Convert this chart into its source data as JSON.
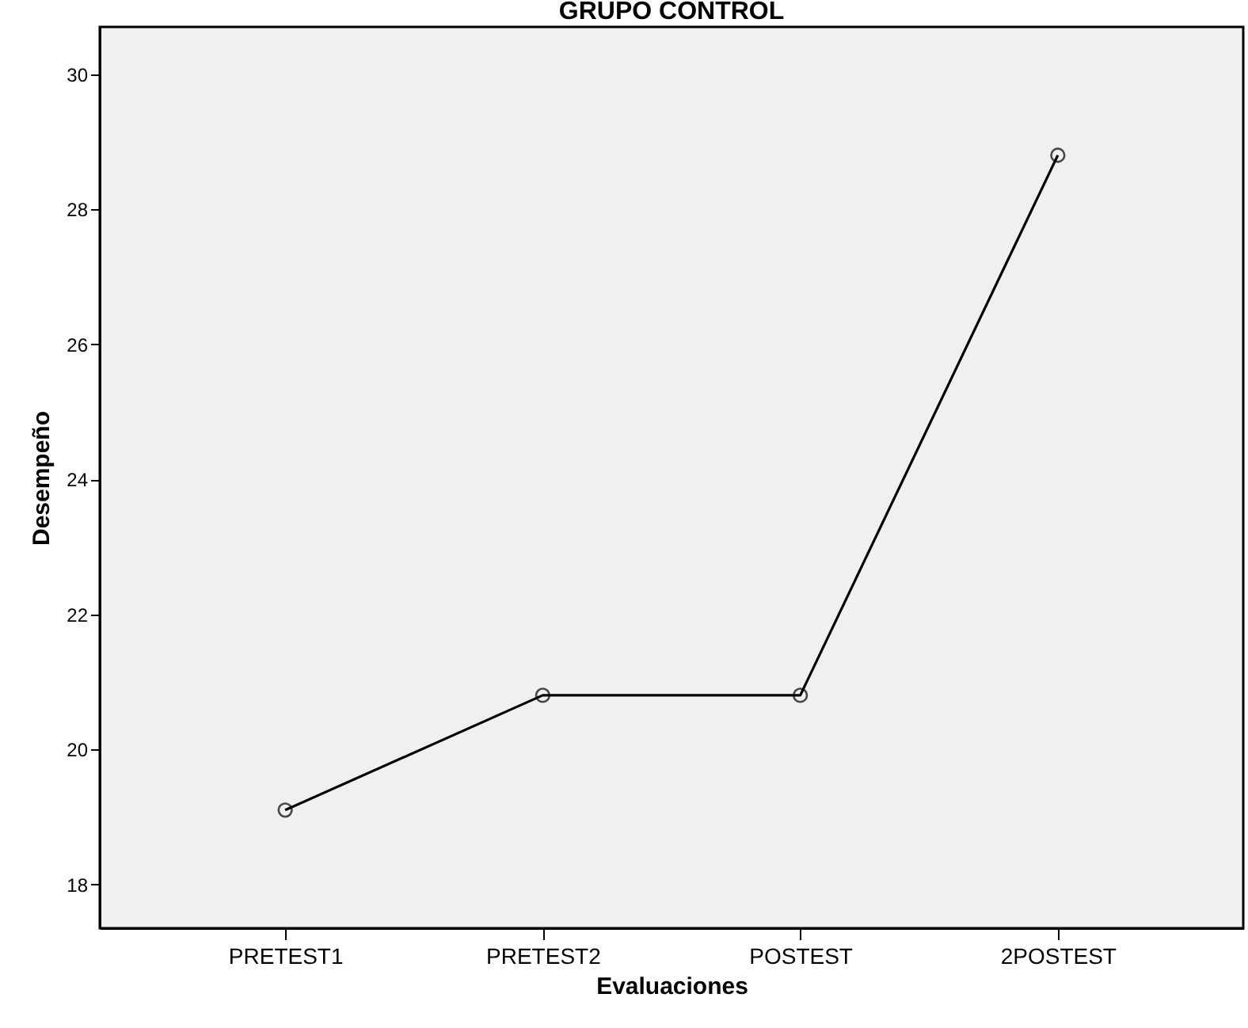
{
  "chart_data": {
    "type": "line",
    "title": "GRUPO CONTROL",
    "xlabel": "Evaluaciones",
    "ylabel": "Desempeño",
    "categories": [
      "PRETEST1",
      "PRETEST2",
      "POSTEST",
      "2POSTEST"
    ],
    "series": [
      {
        "color": "#000000",
        "values": [
          19.1,
          20.8,
          20.8,
          28.8
        ]
      }
    ],
    "ylim": [
      17.35,
      30.7
    ],
    "yticks": [
      18,
      20,
      22,
      24,
      26,
      28,
      30
    ],
    "marker": "circle",
    "line_style": "solid",
    "grid": false
  }
}
